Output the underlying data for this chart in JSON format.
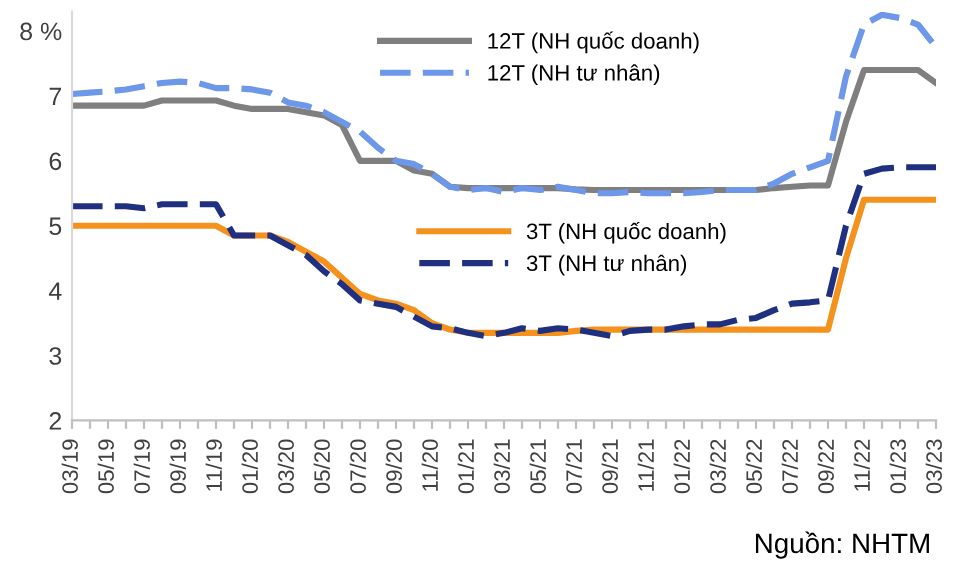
{
  "chart_data": {
    "type": "line",
    "categories": [
      "03/19",
      null,
      "05/19",
      null,
      "07/19",
      null,
      "09/19",
      null,
      "11/19",
      null,
      "01/20",
      null,
      "03/20",
      null,
      "05/20",
      null,
      "07/20",
      null,
      "09/20",
      null,
      "11/20",
      null,
      "01/21",
      null,
      "03/21",
      null,
      "05/21",
      null,
      "07/21",
      null,
      "09/21",
      null,
      "11/21",
      null,
      "01/22",
      null,
      "03/22",
      null,
      "05/22",
      null,
      "07/22",
      null,
      "09/22",
      null,
      "11/22",
      null,
      "01/23",
      null,
      "03/23"
    ],
    "series": [
      {
        "name": "12T (NH quốc doanh)",
        "color": "#7f7f7f",
        "line_style": "solid",
        "values": [
          6.85,
          6.85,
          6.85,
          6.85,
          6.85,
          6.93,
          6.93,
          6.93,
          6.93,
          6.85,
          6.8,
          6.8,
          6.8,
          6.75,
          6.7,
          6.55,
          6.0,
          6.0,
          6.0,
          5.85,
          5.8,
          5.6,
          5.58,
          5.58,
          5.58,
          5.58,
          5.58,
          5.58,
          5.56,
          5.55,
          5.55,
          5.55,
          5.55,
          5.55,
          5.55,
          5.55,
          5.55,
          5.55,
          5.55,
          5.58,
          5.6,
          5.62,
          5.62,
          6.6,
          7.4,
          7.4,
          7.4,
          7.4,
          7.2
        ]
      },
      {
        "name": "12T (NH tư nhân)",
        "color": "#6d97e8",
        "line_style": "dashed",
        "values": [
          7.03,
          7.05,
          7.07,
          7.1,
          7.15,
          7.2,
          7.22,
          7.2,
          7.12,
          7.12,
          7.1,
          7.05,
          6.9,
          6.85,
          6.75,
          6.6,
          6.45,
          6.2,
          6.0,
          5.95,
          5.8,
          5.6,
          5.55,
          5.58,
          5.52,
          5.58,
          5.55,
          5.6,
          5.55,
          5.5,
          5.5,
          5.52,
          5.5,
          5.5,
          5.5,
          5.52,
          5.55,
          5.55,
          5.55,
          5.65,
          5.8,
          5.9,
          6.0,
          7.3,
          8.1,
          8.25,
          8.2,
          8.1,
          7.75
        ]
      },
      {
        "name": "3T (NH quốc doanh)",
        "color": "#f5921e",
        "line_style": "solid",
        "values": [
          5.0,
          5.0,
          5.0,
          5.0,
          5.0,
          5.0,
          5.0,
          5.0,
          5.0,
          4.85,
          4.85,
          4.85,
          4.75,
          4.6,
          4.45,
          4.2,
          3.95,
          3.85,
          3.8,
          3.7,
          3.5,
          3.4,
          3.35,
          3.35,
          3.35,
          3.35,
          3.35,
          3.35,
          3.38,
          3.4,
          3.4,
          3.4,
          3.4,
          3.4,
          3.4,
          3.4,
          3.4,
          3.4,
          3.4,
          3.4,
          3.4,
          3.4,
          3.4,
          4.5,
          5.4,
          5.4,
          5.4,
          5.4,
          5.4
        ]
      },
      {
        "name": "3T (NH tư nhân)",
        "color": "#1f3080",
        "line_style": "dashed",
        "values": [
          5.3,
          5.3,
          5.3,
          5.3,
          5.27,
          5.33,
          5.33,
          5.33,
          5.33,
          4.85,
          4.85,
          4.85,
          4.7,
          4.55,
          4.3,
          4.1,
          3.85,
          3.8,
          3.75,
          3.6,
          3.45,
          3.42,
          3.35,
          3.3,
          3.35,
          3.42,
          3.38,
          3.42,
          3.4,
          3.35,
          3.3,
          3.38,
          3.4,
          3.4,
          3.45,
          3.48,
          3.48,
          3.55,
          3.58,
          3.7,
          3.8,
          3.82,
          3.85,
          5.0,
          5.8,
          5.88,
          5.9,
          5.9,
          5.9
        ]
      }
    ],
    "ylim": [
      2,
      8.3
    ],
    "yticks": [
      2,
      3,
      4,
      5,
      6,
      7,
      {
        "value": 8,
        "label": "8 %"
      }
    ],
    "legend": "top right",
    "grid": false,
    "marker": "none",
    "annotations": [
      "Nguồn: NHTM"
    ]
  }
}
